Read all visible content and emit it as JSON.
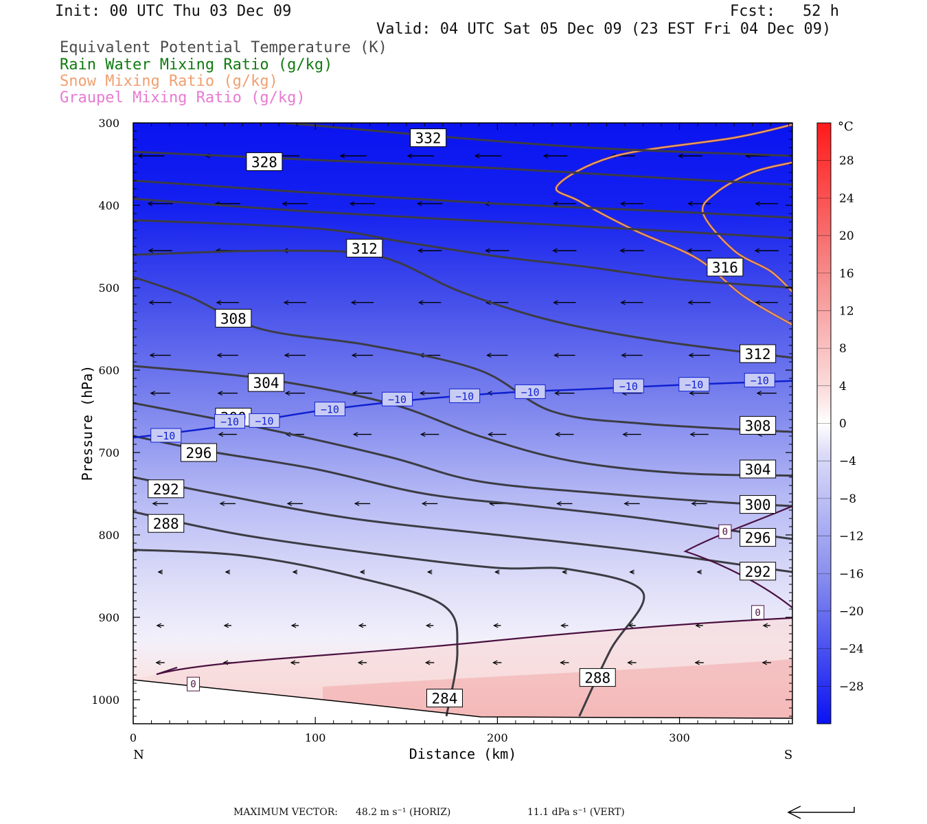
{
  "header": {
    "init": "Init: 00 UTC Thu 03 Dec 09",
    "fcst": "Fcst:   52 h",
    "valid": "Valid: 04 UTC Sat 05 Dec 09 (23 EST Fri 04 Dec 09)"
  },
  "legend": [
    {
      "text": "Equivalent Potential Temperature (K)",
      "color": "#4a4a4a"
    },
    {
      "text": "Rain Water Mixing Ratio (g/kg)",
      "color": "#107a10"
    },
    {
      "text": "Snow Mixing Ratio (g/kg)",
      "color": "#f0a070"
    },
    {
      "text": "Graupel Mixing Ratio (g/kg)",
      "color": "#e87ad0"
    }
  ],
  "footer": {
    "max_vector_label": "MAXIMUM VECTOR:",
    "horiz": "48.2 m s⁻¹ (HORIZ)",
    "vert": "11.1 dPa s⁻¹ (VERT)"
  },
  "chart_data": {
    "type": "cross-section",
    "xlabel": "Distance (km)",
    "ylabel": "Pressure (hPa)",
    "xlim": [
      0,
      362
    ],
    "ylim": [
      300,
      1025
    ],
    "x_ticks": [
      0,
      100,
      200,
      300
    ],
    "y_ticks": [
      300,
      400,
      500,
      600,
      700,
      800,
      900,
      1000
    ],
    "x_end_labels": {
      "left": "N",
      "right": "S"
    },
    "colorbar": {
      "unit": "°C",
      "labels": [
        28,
        24,
        20,
        16,
        12,
        8,
        4,
        0,
        -4,
        -8,
        -12,
        -16,
        -20,
        -24,
        -28
      ],
      "range": [
        -32,
        32
      ]
    },
    "theta_e_contours": [
      {
        "value": 332,
        "points": [
          [
            84,
            300
          ],
          [
            150,
            313
          ],
          [
            250,
            330
          ],
          [
            362,
            340
          ]
        ],
        "labels": [
          [
            162,
            318
          ]
        ]
      },
      {
        "value": 328,
        "points": [
          [
            0,
            335
          ],
          [
            100,
            345
          ],
          [
            200,
            355
          ],
          [
            300,
            368
          ],
          [
            362,
            375
          ]
        ],
        "labels": [
          [
            72,
            347
          ]
        ]
      },
      {
        "value": 324,
        "points": [
          [
            0,
            370
          ],
          [
            100,
            385
          ],
          [
            200,
            398
          ],
          [
            300,
            408
          ],
          [
            362,
            415
          ]
        ],
        "labels": []
      },
      {
        "value": 320,
        "points": [
          [
            0,
            392
          ],
          [
            100,
            408
          ],
          [
            200,
            420
          ],
          [
            300,
            432
          ],
          [
            362,
            440
          ]
        ],
        "labels": []
      },
      {
        "value": 316,
        "points": [
          [
            0,
            418
          ],
          [
            100,
            428
          ],
          [
            150,
            445
          ],
          [
            200,
            462
          ],
          [
            250,
            475
          ],
          [
            300,
            490
          ],
          [
            362,
            500
          ]
        ],
        "labels": [
          [
            325,
            475
          ]
        ]
      },
      {
        "value": 312,
        "points": [
          [
            0,
            460
          ],
          [
            80,
            455
          ],
          [
            135,
            462
          ],
          [
            180,
            505
          ],
          [
            230,
            540
          ],
          [
            290,
            565
          ],
          [
            362,
            585
          ]
        ],
        "labels": [
          [
            127,
            452
          ],
          [
            343,
            580
          ]
        ]
      },
      {
        "value": 308,
        "points": [
          [
            0,
            487
          ],
          [
            30,
            510
          ],
          [
            70,
            550
          ],
          [
            130,
            570
          ],
          [
            190,
            600
          ],
          [
            230,
            650
          ],
          [
            280,
            665
          ],
          [
            362,
            675
          ]
        ],
        "labels": [
          [
            55,
            537
          ],
          [
            343,
            667
          ]
        ]
      },
      {
        "value": 304,
        "points": [
          [
            0,
            595
          ],
          [
            70,
            610
          ],
          [
            140,
            640
          ],
          [
            190,
            680
          ],
          [
            240,
            710
          ],
          [
            300,
            725
          ],
          [
            362,
            728
          ]
        ],
        "labels": [
          [
            73,
            615
          ],
          [
            343,
            720
          ]
        ]
      },
      {
        "value": 300,
        "points": [
          [
            0,
            640
          ],
          [
            70,
            670
          ],
          [
            140,
            705
          ],
          [
            190,
            735
          ],
          [
            260,
            750
          ],
          [
            320,
            760
          ],
          [
            362,
            765
          ]
        ],
        "labels": [
          [
            55,
            657
          ],
          [
            343,
            763
          ]
        ]
      },
      {
        "value": 296,
        "points": [
          [
            0,
            680
          ],
          [
            40,
            698
          ],
          [
            100,
            720
          ],
          [
            160,
            750
          ],
          [
            220,
            765
          ],
          [
            280,
            780
          ],
          [
            362,
            805
          ]
        ],
        "labels": [
          [
            36,
            700
          ],
          [
            343,
            803
          ]
        ]
      },
      {
        "value": 292,
        "points": [
          [
            0,
            730
          ],
          [
            50,
            752
          ],
          [
            120,
            780
          ],
          [
            200,
            800
          ],
          [
            280,
            820
          ],
          [
            362,
            845
          ]
        ],
        "labels": [
          [
            18,
            744
          ],
          [
            343,
            844
          ]
        ]
      },
      {
        "value": 288,
        "points": [
          [
            0,
            772
          ],
          [
            60,
            800
          ],
          [
            140,
            825
          ],
          [
            200,
            840
          ],
          [
            240,
            842
          ],
          [
            280,
            870
          ],
          [
            262,
            940
          ],
          [
            245,
            1020
          ]
        ],
        "labels": [
          [
            18,
            786
          ],
          [
            255,
            973
          ]
        ]
      },
      {
        "value": 284,
        "points": [
          [
            0,
            818
          ],
          [
            60,
            825
          ],
          [
            120,
            850
          ],
          [
            170,
            885
          ],
          [
            178,
            940
          ],
          [
            172,
            1020
          ]
        ],
        "labels": [
          [
            171,
            998
          ]
        ]
      }
    ],
    "temperature_zero_contours": [
      {
        "value": 0,
        "labels": [
          [
            33,
            981
          ],
          [
            343,
            894
          ]
        ]
      },
      {
        "value": 0,
        "labels": [
          [
            325,
            796
          ]
        ]
      }
    ],
    "temperature_minus10_contour": {
      "value": -10,
      "points": [
        [
          0,
          682
        ],
        [
          50,
          668
        ],
        [
          100,
          650
        ],
        [
          150,
          637
        ],
        [
          200,
          628
        ],
        [
          250,
          623
        ],
        [
          300,
          618
        ],
        [
          362,
          613
        ]
      ],
      "labels": [
        [
          18,
          680
        ],
        [
          53,
          663
        ],
        [
          72,
          662
        ],
        [
          108,
          648
        ],
        [
          145,
          636
        ],
        [
          182,
          632
        ],
        [
          218,
          627
        ],
        [
          272,
          620
        ],
        [
          308,
          618
        ],
        [
          344,
          613
        ]
      ]
    },
    "snow_mixing_ratio_contours": [
      {
        "points": [
          [
            362,
            302
          ],
          [
            330,
            318
          ],
          [
            265,
            340
          ],
          [
            233,
            376
          ],
          [
            245,
            395
          ],
          [
            275,
            430
          ],
          [
            310,
            465
          ],
          [
            335,
            510
          ],
          [
            362,
            545
          ]
        ]
      },
      {
        "points": [
          [
            362,
            348
          ],
          [
            340,
            360
          ],
          [
            320,
            385
          ],
          [
            313,
            410
          ],
          [
            330,
            455
          ],
          [
            350,
            480
          ],
          [
            362,
            505
          ]
        ]
      }
    ]
  }
}
